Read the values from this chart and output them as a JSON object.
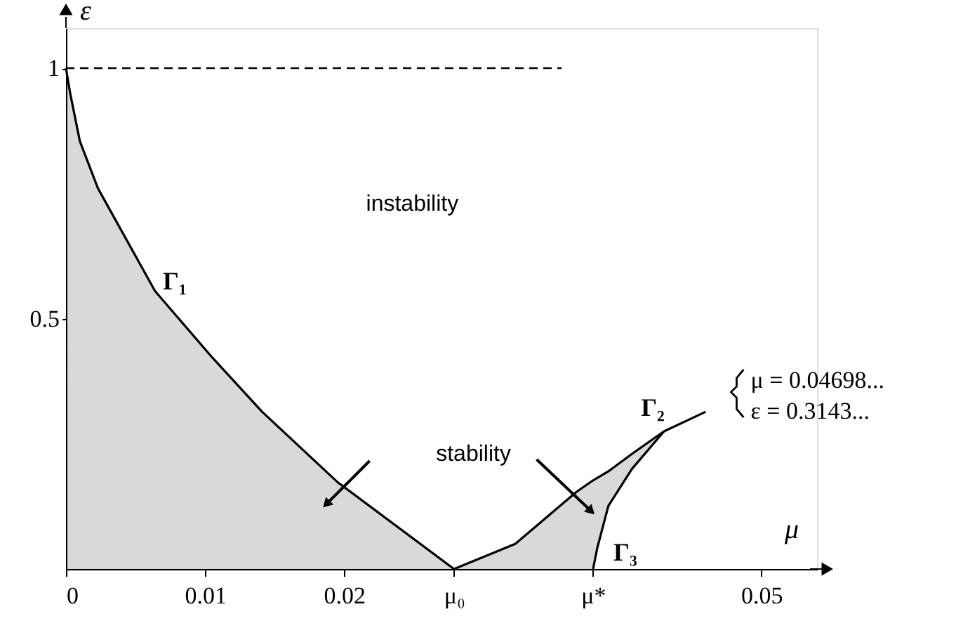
{
  "chart_data": {
    "type": "line",
    "xlabel": "μ",
    "ylabel": "ε",
    "xlim": [
      0,
      0.054
    ],
    "ylim": [
      0,
      1.08
    ],
    "xticks": [
      0,
      0.01,
      0.02,
      {
        "value": 0.0279,
        "label": "μ₀"
      },
      {
        "value": 0.0379,
        "label": "μ*"
      },
      0.05
    ],
    "yticks": [
      0.5,
      1
    ],
    "grid": false,
    "marker": "none",
    "line_style": "solid",
    "series": [
      {
        "name": "Γ₁",
        "type": "area",
        "color": "#000000",
        "x": [
          0,
          0.0003,
          0.001,
          0.0023,
          0.0064,
          0.0104,
          0.0141,
          0.0195,
          0.0279
        ],
        "values": [
          1,
          0.95,
          0.854,
          0.76,
          0.555,
          0.426,
          0.314,
          0.174,
          0
        ]
      },
      {
        "name": "Γ₂",
        "type": "line",
        "color": "#000000",
        "x": [
          0.0279,
          0.0323,
          0.0367,
          0.0379,
          0.039,
          0.0407,
          0.043,
          0.046
        ],
        "values": [
          0,
          0.05,
          0.154,
          0.177,
          0.195,
          0.23,
          0.275,
          0.314
        ],
        "lower": [
          0,
          0,
          0,
          0,
          0.126,
          0.2,
          0.275,
          0.314
        ],
        "upper": [
          0,
          0.05,
          0.154,
          0.177,
          0.195,
          0.23,
          0.275,
          0.314
        ]
      },
      {
        "name": "Γ₃",
        "color": "#000000",
        "x": [
          0.0379,
          0.0382,
          0.039,
          0.0407,
          0.043
        ],
        "values": [
          0,
          0.042,
          0.126,
          0.2,
          0.275
        ]
      }
    ],
    "ref_lines": [
      {
        "axis": "y",
        "value": 1,
        "line_style": "dashed",
        "color": "#000000"
      }
    ],
    "annotations": [
      "instability",
      "stability",
      "μ = 0.04698...",
      "ε = 0.3143..."
    ]
  }
}
